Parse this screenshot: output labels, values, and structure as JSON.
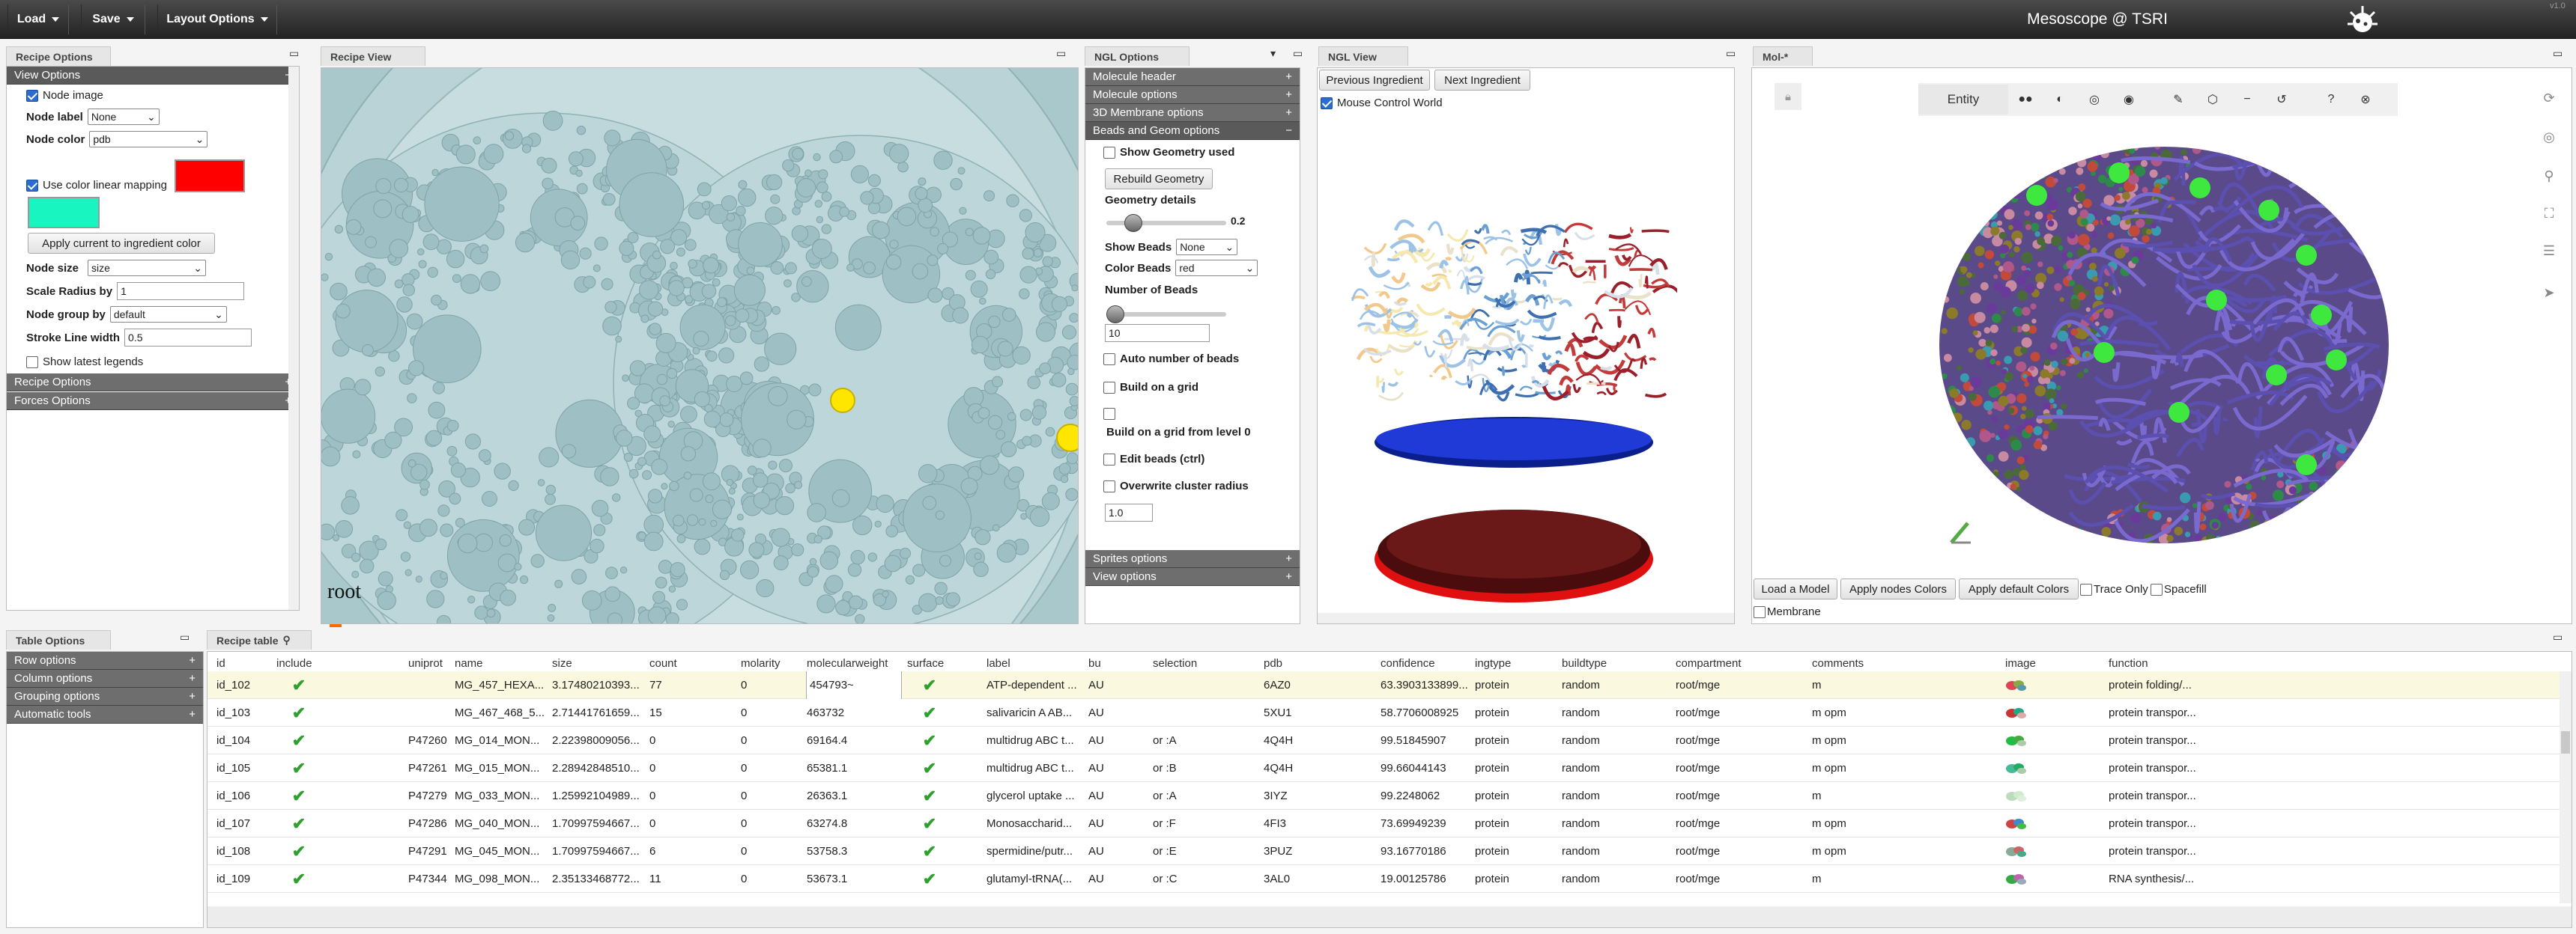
{
  "topbar": {
    "load": "Load",
    "save": "Save",
    "layout": "Layout Options",
    "title": "Mesoscope @ TSRI",
    "version": "v1.0"
  },
  "tabs": {
    "recipe_options": "Recipe Options",
    "recipe_view": "Recipe View",
    "ngl_options": "NGL Options",
    "ngl_view": "NGL View",
    "mol": "Mol-*",
    "table_options": "Table Options",
    "recipe_table": "Recipe table"
  },
  "recipe_options": {
    "view_options": "View Options",
    "node_image": "Node image",
    "node_label": "Node label",
    "node_label_value": "None",
    "node_color": "Node color",
    "node_color_value": "pdb",
    "use_color_linear": "Use color linear mapping",
    "color_max": "#ff0000",
    "color_min": "#19f5c1",
    "apply_current": "Apply current to ingredient color",
    "node_size": "Node size",
    "node_size_value": "size",
    "scale_radius": "Scale Radius by",
    "scale_radius_value": "1",
    "node_group": "Node group by",
    "node_group_value": "default",
    "stroke_width": "Stroke Line width",
    "stroke_width_value": "0.5",
    "show_legends": "Show latest legends",
    "recipe_options": "Recipe Options",
    "forces_options": "Forces Options"
  },
  "recipe_view": {
    "root_label": "root"
  },
  "ngl_options": {
    "molecule_header": "Molecule header",
    "molecule_options": "Molecule options",
    "membrane_options": "3D Membrane options",
    "beads_geom": "Beads and Geom options",
    "show_geometry": "Show Geometry used",
    "rebuild_geometry": "Rebuild Geometry",
    "geometry_details": "Geometry details",
    "geometry_value": "0.2",
    "show_beads": "Show Beads",
    "show_beads_value": "None",
    "color_beads": "Color Beads",
    "color_beads_value": "red",
    "number_beads": "Number of Beads",
    "number_beads_value": "10",
    "auto_beads": "Auto number of beads",
    "build_grid": "Build on a grid",
    "build_grid_level": "Build on a grid from level 0",
    "edit_beads": "Edit beads (ctrl)",
    "overwrite_radius": "Overwrite cluster radius",
    "overwrite_value": "1.0",
    "sprites_options": "Sprites options",
    "view_options": "View options"
  },
  "ngl_view": {
    "previous": "Previous Ingredient",
    "next": "Next Ingredient",
    "mouse_control": "Mouse Control World"
  },
  "mol": {
    "entity": "Entity",
    "load_model": "Load a Model",
    "apply_nodes": "Apply nodes Colors",
    "apply_default": "Apply default Colors",
    "trace_only": "Trace Only",
    "spacefill": "Spacefill",
    "membrane": "Membrane"
  },
  "table_options": {
    "row": "Row options",
    "column": "Column options",
    "grouping": "Grouping options",
    "automatic": "Automatic tools"
  },
  "table": {
    "headers": [
      "id",
      "include",
      "uniprot",
      "name",
      "size",
      "count",
      "molarity",
      "molecularweight",
      "surface",
      "label",
      "bu",
      "selection",
      "pdb",
      "confidence",
      "ingtype",
      "buildtype",
      "compartment",
      "comments",
      "image",
      "function"
    ],
    "rows": [
      [
        "id_102",
        "",
        "",
        "MG_457_HEXA...",
        "3.17480210393...",
        "77",
        "0",
        "454793~",
        "",
        "ATP-dependent ...",
        "AU",
        "",
        "6AZ0",
        "63.3903133899...",
        "protein",
        "random",
        "root/mge",
        "m",
        "",
        "protein folding/..."
      ],
      [
        "id_103",
        "",
        "",
        "MG_467_468_5...",
        "2.71441761659...",
        "15",
        "0",
        "463732",
        "",
        "salivaricin A AB...",
        "AU",
        "",
        "5XU1",
        "58.7706008925",
        "protein",
        "random",
        "root/mge",
        "m opm",
        "",
        "protein transpor..."
      ],
      [
        "id_104",
        "",
        "P47260",
        "MG_014_MON...",
        "2.22398009056...",
        "0",
        "0",
        "69164.4",
        "",
        "multidrug ABC t...",
        "AU",
        "or :A",
        "4Q4H",
        "99.51845907",
        "protein",
        "random",
        "root/mge",
        "m opm",
        "",
        "protein transpor..."
      ],
      [
        "id_105",
        "",
        "P47261",
        "MG_015_MON...",
        "2.28942848510...",
        "0",
        "0",
        "65381.1",
        "",
        "multidrug ABC t...",
        "AU",
        "or :B",
        "4Q4H",
        "99.66044143",
        "protein",
        "random",
        "root/mge",
        "m opm",
        "",
        "protein transpor..."
      ],
      [
        "id_106",
        "",
        "P47279",
        "MG_033_MON...",
        "1.25992104989...",
        "0",
        "0",
        "26363.1",
        "",
        "glycerol uptake ...",
        "AU",
        "or :A",
        "3IYZ",
        "99.2248062",
        "protein",
        "random",
        "root/mge",
        "m",
        "",
        "protein transpor..."
      ],
      [
        "id_107",
        "",
        "P47286",
        "MG_040_MON...",
        "1.70997594667...",
        "0",
        "0",
        "63274.8",
        "",
        "Monosaccharid...",
        "AU",
        "or :F",
        "4FI3",
        "73.69949239",
        "protein",
        "random",
        "root/mge",
        "m opm",
        "",
        "protein transpor..."
      ],
      [
        "id_108",
        "",
        "P47291",
        "MG_045_MON...",
        "1.70997594667...",
        "6",
        "0",
        "53758.3",
        "",
        "spermidine/putr...",
        "AU",
        "or :E",
        "3PUZ",
        "93.16770186",
        "protein",
        "random",
        "root/mge",
        "m opm",
        "",
        "protein transpor..."
      ],
      [
        "id_109",
        "",
        "P47344",
        "MG_098_MON...",
        "2.35133468772...",
        "11",
        "0",
        "53673.1",
        "",
        "glutamyl-tRNA(...",
        "AU",
        "or :C",
        "3AL0",
        "19.00125786",
        "protein",
        "random",
        "root/mge",
        "m",
        "",
        "RNA synthesis/..."
      ]
    ]
  }
}
